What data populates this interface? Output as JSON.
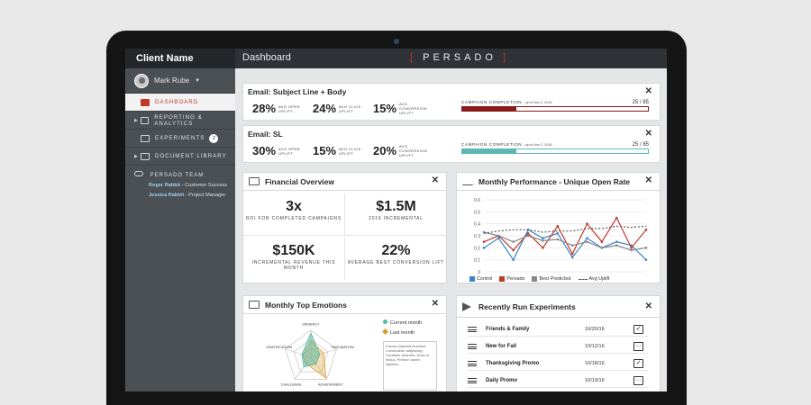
{
  "sidebar": {
    "client_name": "Client Name",
    "user_name": "Mark Rube",
    "nav": [
      {
        "label": "DASHBOARD",
        "active": true
      },
      {
        "label": "REPORTING & ANALYTICS"
      },
      {
        "label": "EXPERIMENTS",
        "badge": "2"
      },
      {
        "label": "DOCUMENT LIBRARY"
      }
    ],
    "team_label": "PERSADO TEAM",
    "team": [
      {
        "name": "Roger Rabbit",
        "role": " - Customer Success"
      },
      {
        "name": "Jessica Rabbit",
        "role": " - Project Manager"
      }
    ]
  },
  "header": {
    "title": "Dashboard",
    "logo": "PERSADO"
  },
  "email_cards": [
    {
      "title": "Email: Subject Line + Body",
      "metrics": [
        {
          "value": "28%",
          "label": "AVG OPEN UPLIFT"
        },
        {
          "value": "24%",
          "label": "AVG CLICK UPLIFT"
        },
        {
          "value": "15%",
          "label": "AVG CONVERSION UPLIFT"
        }
      ],
      "completion_label": "CAMPAIGN COMPLETION",
      "completion_sub": " · up to Nov 2, 2016",
      "count": "25 / 85",
      "progress": 0.29,
      "color": "#8b1a1a"
    },
    {
      "title": "Email: SL",
      "metrics": [
        {
          "value": "30%",
          "label": "AVG OPEN UPLIFT"
        },
        {
          "value": "15%",
          "label": "AVG CLICK UPLIFT"
        },
        {
          "value": "20%",
          "label": "AVG CONVERSION UPLIFT"
        }
      ],
      "completion_label": "CAMPAIGN COMPLETION",
      "completion_sub": " · up to Nov 2, 2016",
      "count": "25 / 85",
      "progress": 0.29,
      "color": "#5bb8b2"
    }
  ],
  "financial": {
    "title": "Financial Overview",
    "items": [
      {
        "value": "3x",
        "label": "ROI FOR COMPLETED CAMPAIGNS"
      },
      {
        "value": "$1.5M",
        "label": "2016 INCREMENTAL"
      },
      {
        "value": "$150K",
        "label": "INCREMENTAL REVENUE THIS MONTH"
      },
      {
        "value": "22%",
        "label": "AVERAGE BEST CONVERSION LIFT"
      }
    ]
  },
  "performance": {
    "title": "Monthly Performance - Unique Open Rate",
    "chart_data": {
      "type": "line",
      "yticks": [
        "0.6",
        "0.5",
        "0.4",
        "0.3",
        "0.2",
        "0.1",
        "0"
      ],
      "ylim": [
        0,
        0.6
      ],
      "series": [
        {
          "name": "Control",
          "color": "#3a86c8",
          "values": [
            0.2,
            0.28,
            0.1,
            0.35,
            0.28,
            0.32,
            0.12,
            0.28,
            0.2,
            0.25,
            0.22,
            0.1
          ]
        },
        {
          "name": "Persado",
          "color": "#c0392b",
          "values": [
            0.25,
            0.3,
            0.18,
            0.32,
            0.2,
            0.38,
            0.15,
            0.4,
            0.25,
            0.45,
            0.2,
            0.35
          ]
        },
        {
          "name": "Best Predicted",
          "color": "#888888",
          "values": [
            0.33,
            0.3,
            0.25,
            0.3,
            0.26,
            0.27,
            0.22,
            0.25,
            0.2,
            0.22,
            0.18,
            0.2
          ]
        },
        {
          "name": "Avg Uplift",
          "color": "#555555",
          "dashed": true,
          "values": [
            0.32,
            0.34,
            0.35,
            0.35,
            0.33,
            0.34,
            0.34,
            0.36,
            0.36,
            0.38,
            0.37,
            0.38
          ]
        }
      ]
    }
  },
  "emotions": {
    "title": "Monthly Top Emotions",
    "axes": [
      "URGENCY",
      "FASCINATION",
      "ACHIEVEMENT",
      "CHALLENGE",
      "GRATIFICATION"
    ],
    "legend": [
      {
        "label": "Current month",
        "color": "#5bb8a0"
      },
      {
        "label": "Last month",
        "color": "#d9a030"
      }
    ],
    "note": "Faucet pharetra tincidunt. Consectetur adipiscing. Curabitur pharetra. Nunc ut lectus. Pretium donec dapibus."
  },
  "experiments": {
    "title": "Recently Run Experiments",
    "rows": [
      {
        "name": "Friends & Family",
        "date": "10/20/16",
        "status": "✓"
      },
      {
        "name": "New for Fall",
        "date": "10/12/16",
        "status": "···"
      },
      {
        "name": "Thanksgiving Promo",
        "date": "10/18/16",
        "status": "✓"
      },
      {
        "name": "Daily Promo",
        "date": "10/19/16",
        "status": "···"
      }
    ]
  }
}
